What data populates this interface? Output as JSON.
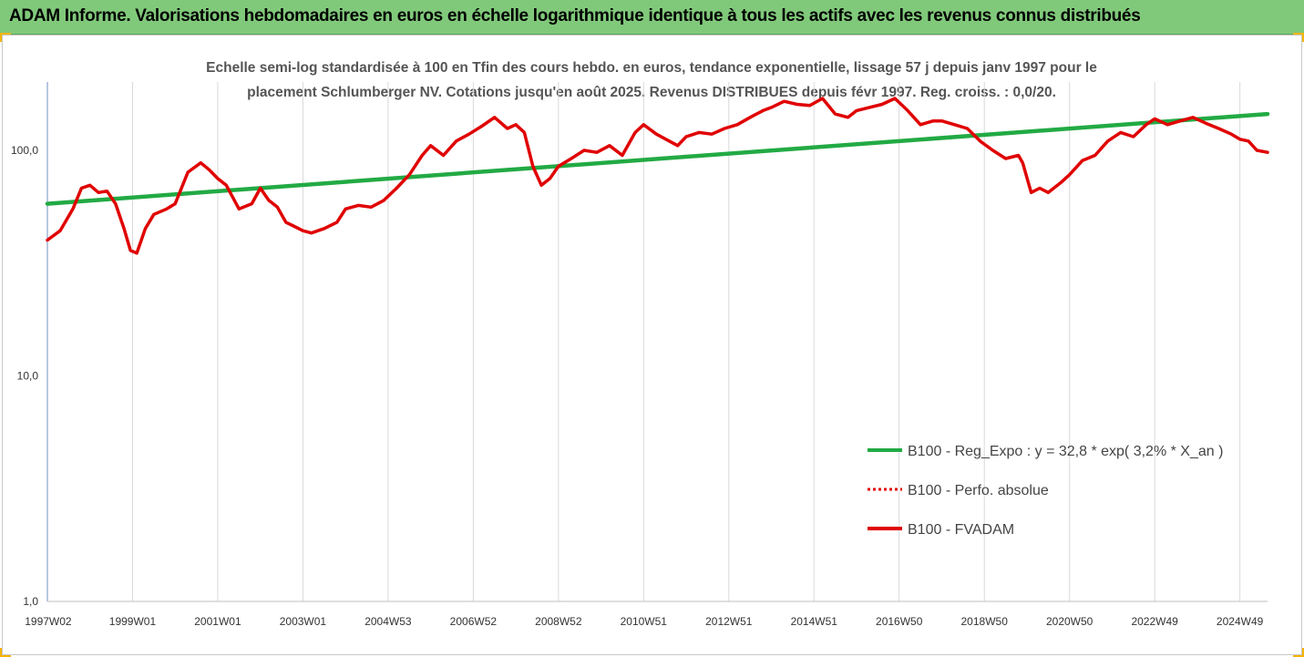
{
  "header": {
    "title": "ADAM Informe. Valorisations hebdomadaires en euros en échelle logarithmique identique à tous les actifs avec les revenus connus distribués"
  },
  "chart_data": {
    "type": "line",
    "title_line1": "Echelle semi-log standardisée à 100 en Tfin des cours hebdo. en euros, tendance exponentielle, lissage 57 j depuis janv 1997 pour le",
    "title_line2": "placement Schlumberger NV. Cotations jusqu'en août 2025. Revenus DISTRIBUES depuis févr 1997. Reg. croiss. : 0,0/20.",
    "y_scale": "log",
    "ylim": [
      1,
      200
    ],
    "y_ticks": [
      {
        "value": 1,
        "label": "1,0"
      },
      {
        "value": 10,
        "label": "10,0"
      },
      {
        "value": 100,
        "label": "100,0"
      }
    ],
    "xlim": [
      1997.0,
      2025.65
    ],
    "x_ticks": [
      {
        "value": 1997.02,
        "label": "1997W02"
      },
      {
        "value": 1999.0,
        "label": "1999W01"
      },
      {
        "value": 2001.0,
        "label": "2001W01"
      },
      {
        "value": 2003.0,
        "label": "2003W01"
      },
      {
        "value": 2005.0,
        "label": "2004W53"
      },
      {
        "value": 2007.0,
        "label": "2006W52"
      },
      {
        "value": 2009.0,
        "label": "2008W52"
      },
      {
        "value": 2011.0,
        "label": "2010W51"
      },
      {
        "value": 2013.0,
        "label": "2012W51"
      },
      {
        "value": 2015.0,
        "label": "2014W51"
      },
      {
        "value": 2017.0,
        "label": "2016W50"
      },
      {
        "value": 2019.0,
        "label": "2018W50"
      },
      {
        "value": 2021.0,
        "label": "2020W50"
      },
      {
        "value": 2023.0,
        "label": "2022W49"
      },
      {
        "value": 2025.0,
        "label": "2024W49"
      }
    ],
    "grid": "vertical",
    "legend_position": "bottom-right",
    "series": [
      {
        "name": "B100 - Reg_Expo : y = 32,8 * exp( 3,2% *  X_an )",
        "color": "#22aa44",
        "style": "solid",
        "x": [
          1997.0,
          2025.65
        ],
        "y": [
          58,
          145
        ]
      },
      {
        "name": "B100 - Perfo. absolue",
        "color": "#e00000",
        "style": "dotted",
        "x": [],
        "y": []
      },
      {
        "name": "B100 - FVADAM",
        "color": "#e00000",
        "style": "solid",
        "x": [
          1997.0,
          1997.3,
          1997.6,
          1997.8,
          1998.0,
          1998.2,
          1998.4,
          1998.6,
          1998.8,
          1998.95,
          1999.1,
          1999.3,
          1999.5,
          1999.8,
          2000.0,
          2000.3,
          2000.6,
          2000.8,
          2001.0,
          2001.2,
          2001.5,
          2001.8,
          2002.0,
          2002.2,
          2002.4,
          2002.6,
          2002.8,
          2003.0,
          2003.2,
          2003.5,
          2003.8,
          2004.0,
          2004.3,
          2004.6,
          2004.9,
          2005.2,
          2005.5,
          2005.8,
          2006.0,
          2006.3,
          2006.6,
          2006.9,
          2007.2,
          2007.5,
          2007.8,
          2008.0,
          2008.2,
          2008.4,
          2008.6,
          2008.8,
          2009.0,
          2009.3,
          2009.6,
          2009.9,
          2010.2,
          2010.5,
          2010.8,
          2011.0,
          2011.3,
          2011.6,
          2011.8,
          2012.0,
          2012.3,
          2012.6,
          2012.9,
          2013.2,
          2013.5,
          2013.8,
          2014.0,
          2014.3,
          2014.6,
          2014.9,
          2015.2,
          2015.5,
          2015.8,
          2016.0,
          2016.3,
          2016.6,
          2016.9,
          2017.2,
          2017.5,
          2017.8,
          2018.0,
          2018.3,
          2018.6,
          2018.9,
          2019.2,
          2019.5,
          2019.8,
          2019.9,
          2020.1,
          2020.3,
          2020.5,
          2020.8,
          2021.0,
          2021.3,
          2021.6,
          2021.9,
          2022.2,
          2022.5,
          2022.8,
          2023.0,
          2023.3,
          2023.6,
          2023.9,
          2024.2,
          2024.5,
          2024.8,
          2025.0,
          2025.2,
          2025.4,
          2025.65
        ],
        "y": [
          40,
          44,
          55,
          68,
          70,
          65,
          66,
          58,
          45,
          36,
          35,
          45,
          52,
          55,
          58,
          80,
          88,
          82,
          75,
          70,
          55,
          58,
          68,
          60,
          56,
          48,
          46,
          44,
          43,
          45,
          48,
          55,
          57,
          56,
          60,
          68,
          78,
          95,
          105,
          95,
          110,
          118,
          128,
          140,
          125,
          130,
          120,
          85,
          70,
          75,
          85,
          92,
          100,
          98,
          105,
          95,
          120,
          130,
          118,
          110,
          105,
          115,
          120,
          118,
          125,
          130,
          140,
          150,
          155,
          165,
          160,
          158,
          170,
          145,
          140,
          150,
          155,
          160,
          170,
          150,
          130,
          135,
          135,
          130,
          125,
          110,
          100,
          92,
          95,
          88,
          65,
          68,
          65,
          72,
          78,
          90,
          95,
          110,
          120,
          115,
          130,
          138,
          130,
          135,
          140,
          132,
          125,
          118,
          112,
          110,
          100,
          98
        ]
      }
    ]
  }
}
